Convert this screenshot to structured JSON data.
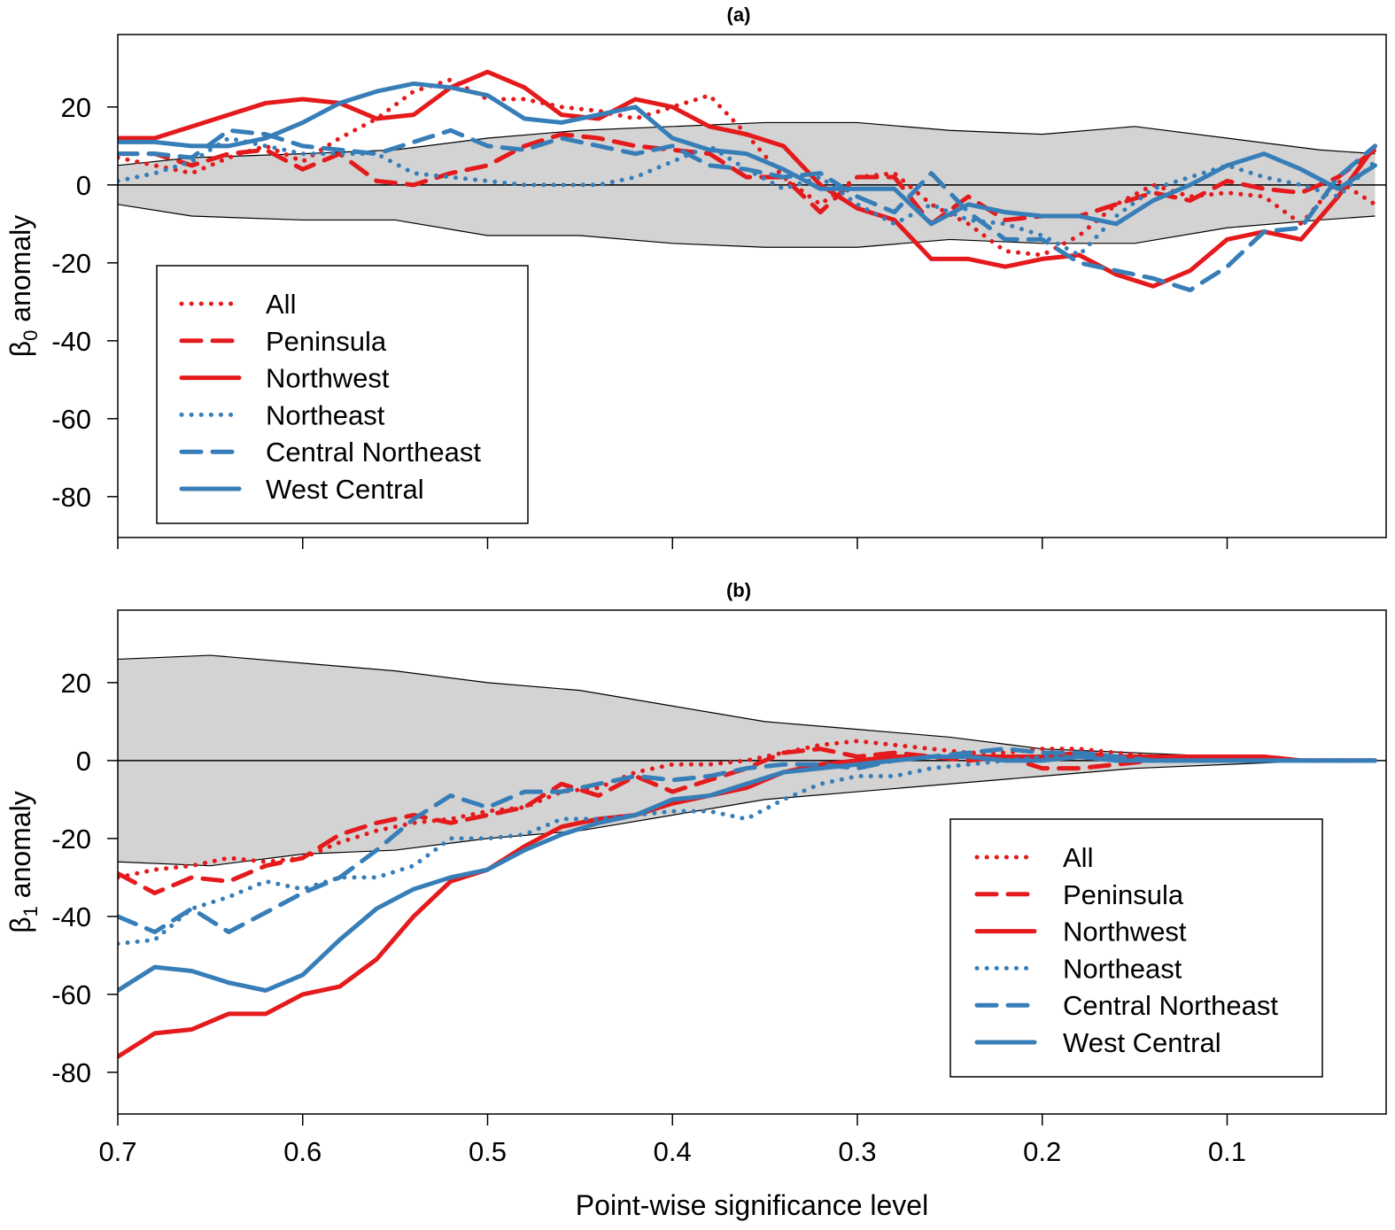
{
  "chart_data": [
    {
      "type": "line",
      "title": "(a)",
      "ylabel": {
        "symbol": "β",
        "sub": "0",
        "text": "anomaly"
      },
      "xlabel": "Point-wise significance level",
      "xlim": [
        0.7,
        0.014
      ],
      "ylim": [
        -90.5,
        38.6
      ],
      "xticks": [
        0.7,
        0.6,
        0.5,
        0.4,
        0.3,
        0.2,
        0.1
      ],
      "yticks": [
        20,
        0,
        -20,
        -40,
        -60,
        -80
      ],
      "show_xtick_labels": false,
      "legend_position": "bottom-left",
      "x": [
        0.7,
        0.68,
        0.66,
        0.64,
        0.62,
        0.6,
        0.58,
        0.56,
        0.54,
        0.52,
        0.5,
        0.48,
        0.46,
        0.44,
        0.42,
        0.4,
        0.38,
        0.36,
        0.34,
        0.32,
        0.3,
        0.28,
        0.26,
        0.24,
        0.22,
        0.2,
        0.18,
        0.16,
        0.14,
        0.12,
        0.1,
        0.08,
        0.06,
        0.04,
        0.02
      ],
      "band": {
        "x": [
          0.7,
          0.66,
          0.6,
          0.55,
          0.5,
          0.45,
          0.4,
          0.35,
          0.3,
          0.25,
          0.2,
          0.15,
          0.1,
          0.05,
          0.02
        ],
        "upper": [
          5,
          7,
          8,
          9,
          12,
          14,
          15,
          16,
          16,
          14,
          13,
          15,
          12,
          9,
          8
        ],
        "lower": [
          -5,
          -8,
          -9,
          -9,
          -13,
          -13,
          -15,
          -16,
          -16,
          -14,
          -15,
          -15,
          -11,
          -9,
          -8
        ]
      },
      "series": [
        {
          "name": "All",
          "color": "#E41A1C",
          "style": "dotted",
          "values": [
            7,
            5,
            3,
            7,
            10,
            6,
            12,
            17,
            24,
            27,
            22,
            22,
            20,
            19,
            17,
            20,
            23,
            13,
            2,
            -5,
            2,
            3,
            -5,
            -10,
            -17,
            -18,
            -13,
            -5,
            0,
            -3,
            -2,
            -3,
            -10,
            1,
            -5
          ]
        },
        {
          "name": "Peninsula",
          "color": "#E41A1C",
          "style": "dashed",
          "values": [
            8,
            8,
            5,
            8,
            9,
            4,
            8,
            1,
            0,
            3,
            5,
            10,
            13,
            12,
            10,
            9,
            8,
            2,
            2,
            -7,
            2,
            2,
            -10,
            -3,
            -9,
            -8,
            -8,
            -5,
            -2,
            -4,
            1,
            -1,
            -2,
            2,
            9
          ]
        },
        {
          "name": "Northwest",
          "color": "#E41A1C",
          "style": "solid",
          "values": [
            12,
            12,
            15,
            18,
            21,
            22,
            21,
            17,
            18,
            25,
            29,
            25,
            18,
            17,
            22,
            20,
            15,
            13,
            10,
            0,
            -6,
            -9,
            -19,
            -19,
            -21,
            -19,
            -18,
            -23,
            -26,
            -22,
            -14,
            -12,
            -14,
            -3,
            10
          ]
        },
        {
          "name": "Northeast",
          "color": "#377EB8",
          "style": "dotted",
          "values": [
            1,
            3,
            6,
            12,
            10,
            8,
            8,
            8,
            3,
            2,
            1,
            0,
            0,
            0,
            2,
            6,
            10,
            4,
            -1,
            2,
            -5,
            -10,
            -5,
            -9,
            -10,
            -13,
            -18,
            -8,
            -1,
            2,
            5,
            2,
            0,
            -3,
            6
          ]
        },
        {
          "name": "Central Northeast",
          "color": "#377EB8",
          "style": "dashed",
          "values": [
            8,
            8,
            7,
            14,
            13,
            10,
            9,
            8,
            11,
            14,
            10,
            9,
            12,
            10,
            8,
            10,
            5,
            4,
            2,
            3,
            -3,
            -7,
            3,
            -7,
            -14,
            -14,
            -20,
            -22,
            -24,
            -27,
            -21,
            -12,
            -11,
            2,
            10
          ]
        },
        {
          "name": "West Central",
          "color": "#377EB8",
          "style": "solid",
          "values": [
            11,
            11,
            10,
            10,
            12,
            16,
            21,
            24,
            26,
            25,
            23,
            17,
            16,
            18,
            20,
            12,
            9,
            8,
            4,
            -1,
            -1,
            -1,
            -10,
            -5,
            -7,
            -8,
            -8,
            -10,
            -4,
            0,
            5,
            8,
            4,
            -1,
            5
          ]
        }
      ]
    },
    {
      "type": "line",
      "title": "(b)",
      "ylabel": {
        "symbol": "β",
        "sub": "1",
        "text": "anomaly"
      },
      "xlabel": "Point-wise significance level",
      "xlim": [
        0.7,
        0.014
      ],
      "ylim": [
        -90.7,
        38.6
      ],
      "xticks": [
        0.7,
        0.6,
        0.5,
        0.4,
        0.3,
        0.2,
        0.1
      ],
      "xtick_labels": [
        "0.7",
        "0.6",
        "0.5",
        "0.4",
        "0.3",
        "0.2",
        "0.1"
      ],
      "yticks": [
        20,
        0,
        -20,
        -40,
        -60,
        -80
      ],
      "show_xtick_labels": true,
      "legend_position": "bottom-right",
      "x": [
        0.7,
        0.68,
        0.66,
        0.64,
        0.62,
        0.6,
        0.58,
        0.56,
        0.54,
        0.52,
        0.5,
        0.48,
        0.46,
        0.44,
        0.42,
        0.4,
        0.38,
        0.36,
        0.34,
        0.32,
        0.3,
        0.28,
        0.26,
        0.24,
        0.22,
        0.2,
        0.18,
        0.16,
        0.14,
        0.12,
        0.1,
        0.08,
        0.06,
        0.04,
        0.02
      ],
      "band": {
        "x": [
          0.7,
          0.65,
          0.6,
          0.55,
          0.5,
          0.45,
          0.4,
          0.35,
          0.3,
          0.25,
          0.2,
          0.15,
          0.1,
          0.05,
          0.02
        ],
        "upper": [
          26,
          27,
          25,
          23,
          20,
          18,
          14,
          10,
          8,
          6,
          3,
          2,
          1,
          0,
          0
        ],
        "lower": [
          -26,
          -27,
          -24,
          -23,
          -20,
          -18,
          -14,
          -10,
          -8,
          -6,
          -4,
          -2,
          -1,
          0,
          0
        ]
      },
      "series": [
        {
          "name": "All",
          "color": "#E41A1C",
          "style": "dotted",
          "values": [
            -30,
            -28,
            -27,
            -25,
            -26,
            -25,
            -21,
            -18,
            -16,
            -15,
            -13,
            -12,
            -8,
            -7,
            -3,
            -1,
            -1,
            0,
            2,
            4,
            5,
            4,
            3,
            2,
            2,
            3,
            3,
            2,
            1,
            1,
            0,
            0,
            0,
            0,
            0
          ]
        },
        {
          "name": "Peninsula",
          "color": "#E41A1C",
          "style": "dashed",
          "values": [
            -29,
            -34,
            -30,
            -31,
            -27,
            -25,
            -19,
            -16,
            -14,
            -16,
            -14,
            -12,
            -6,
            -9,
            -4,
            -8,
            -5,
            -2,
            2,
            3,
            1,
            2,
            1,
            0,
            1,
            -2,
            -2,
            -1,
            0,
            1,
            1,
            1,
            0,
            0,
            0
          ]
        },
        {
          "name": "Northwest",
          "color": "#E41A1C",
          "style": "solid",
          "values": [
            -76,
            -70,
            -69,
            -65,
            -65,
            -60,
            -58,
            -51,
            -40,
            -31,
            -28,
            -22,
            -17,
            -15,
            -14,
            -11,
            -9,
            -7,
            -3,
            -1,
            0,
            1,
            1,
            1,
            1,
            1,
            2,
            1,
            1,
            1,
            1,
            1,
            0,
            0,
            0
          ]
        },
        {
          "name": "Northeast",
          "color": "#377EB8",
          "style": "dotted",
          "values": [
            -47,
            -46,
            -38,
            -35,
            -31,
            -33,
            -30,
            -30,
            -27,
            -20,
            -20,
            -19,
            -15,
            -15,
            -14,
            -13,
            -13,
            -15,
            -10,
            -6,
            -4,
            -4,
            -2,
            -1,
            0,
            1,
            1,
            0,
            0,
            0,
            0,
            0,
            0,
            0,
            0
          ]
        },
        {
          "name": "Central Northeast",
          "color": "#377EB8",
          "style": "dashed",
          "values": [
            -40,
            -44,
            -38,
            -44,
            -39,
            -34,
            -30,
            -23,
            -15,
            -9,
            -12,
            -8,
            -8,
            -6,
            -4,
            -5,
            -4,
            -2,
            -1,
            -1,
            -2,
            0,
            1,
            2,
            3,
            2,
            2,
            1,
            0,
            0,
            0,
            0,
            0,
            0,
            0
          ]
        },
        {
          "name": "West Central",
          "color": "#377EB8",
          "style": "solid",
          "values": [
            -59,
            -53,
            -54,
            -57,
            -59,
            -55,
            -46,
            -38,
            -33,
            -30,
            -28,
            -23,
            -19,
            -16,
            -14,
            -10,
            -9,
            -6,
            -3,
            -2,
            -1,
            0,
            1,
            1,
            0,
            0,
            1,
            0,
            0,
            0,
            0,
            0,
            0,
            0,
            0
          ]
        }
      ]
    }
  ]
}
